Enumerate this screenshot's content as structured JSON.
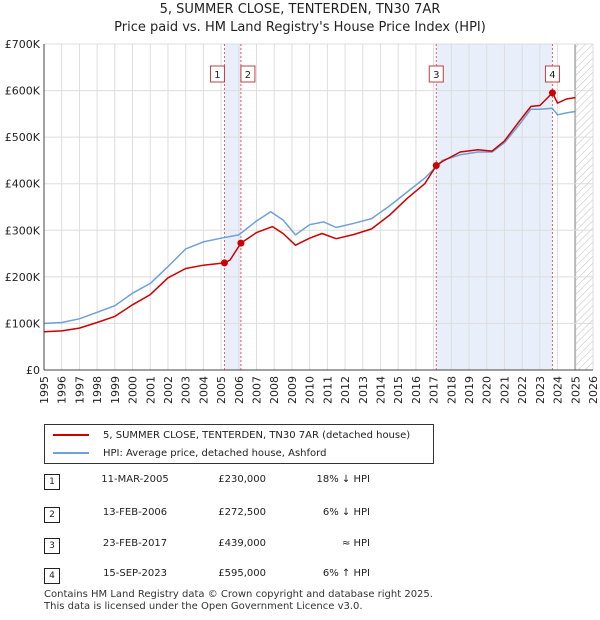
{
  "chart_data": {
    "type": "line",
    "title": "5, SUMMER CLOSE, TENTERDEN, TN30 7AR",
    "subtitle": "Price paid vs. HM Land Registry's House Price Index (HPI)",
    "xlabel": "",
    "ylabel": "",
    "xlim": [
      1995,
      2026
    ],
    "ylim": [
      0,
      700000
    ],
    "x_ticks": [
      "1995",
      "1996",
      "1997",
      "1998",
      "1999",
      "2000",
      "2001",
      "2002",
      "2003",
      "2004",
      "2005",
      "2006",
      "2007",
      "2008",
      "2009",
      "2010",
      "2011",
      "2012",
      "2013",
      "2014",
      "2015",
      "2016",
      "2017",
      "2018",
      "2019",
      "2020",
      "2021",
      "2022",
      "2023",
      "2024",
      "2025",
      "2026"
    ],
    "y_ticks": [
      {
        "value": 0,
        "label": "£0"
      },
      {
        "value": 100000,
        "label": "£100K"
      },
      {
        "value": 200000,
        "label": "£200K"
      },
      {
        "value": 300000,
        "label": "£300K"
      },
      {
        "value": 400000,
        "label": "£400K"
      },
      {
        "value": 500000,
        "label": "£500K"
      },
      {
        "value": 600000,
        "label": "£600K"
      },
      {
        "value": 700000,
        "label": "£700K"
      }
    ],
    "grid": true,
    "series": [
      {
        "name": "5, SUMMER CLOSE, TENTERDEN, TN30 7AR (detached house)",
        "color": "#cc0000",
        "points": [
          [
            1995.0,
            82000
          ],
          [
            1996.0,
            84000
          ],
          [
            1997.0,
            90000
          ],
          [
            1998.0,
            102000
          ],
          [
            1999.0,
            115000
          ],
          [
            2000.0,
            140000
          ],
          [
            2001.0,
            162000
          ],
          [
            2002.0,
            198000
          ],
          [
            2003.0,
            218000
          ],
          [
            2004.0,
            225000
          ],
          [
            2005.19,
            230000
          ],
          [
            2005.5,
            236000
          ],
          [
            2006.12,
            272500
          ],
          [
            2007.0,
            295000
          ],
          [
            2007.9,
            308000
          ],
          [
            2008.5,
            293000
          ],
          [
            2009.2,
            268000
          ],
          [
            2010.0,
            283000
          ],
          [
            2010.7,
            293000
          ],
          [
            2011.5,
            282000
          ],
          [
            2012.5,
            291000
          ],
          [
            2013.5,
            303000
          ],
          [
            2014.5,
            332000
          ],
          [
            2015.5,
            368000
          ],
          [
            2016.5,
            400000
          ],
          [
            2017.15,
            439000
          ],
          [
            2017.5,
            448000
          ],
          [
            2018.5,
            468000
          ],
          [
            2019.5,
            473000
          ],
          [
            2020.3,
            470000
          ],
          [
            2021.0,
            492000
          ],
          [
            2021.8,
            532000
          ],
          [
            2022.5,
            566000
          ],
          [
            2023.0,
            568000
          ],
          [
            2023.71,
            595000
          ],
          [
            2024.0,
            573000
          ],
          [
            2024.5,
            582000
          ],
          [
            2025.0,
            585000
          ]
        ]
      },
      {
        "name": "HPI: Average price, detached house, Ashford",
        "color": "#6fa0d8",
        "points": [
          [
            1995.0,
            100000
          ],
          [
            1996.0,
            102000
          ],
          [
            1997.0,
            110000
          ],
          [
            1998.0,
            124000
          ],
          [
            1999.0,
            138000
          ],
          [
            2000.0,
            165000
          ],
          [
            2001.0,
            186000
          ],
          [
            2002.0,
            222000
          ],
          [
            2003.0,
            260000
          ],
          [
            2004.0,
            275000
          ],
          [
            2005.0,
            283000
          ],
          [
            2006.0,
            290000
          ],
          [
            2007.0,
            320000
          ],
          [
            2007.8,
            340000
          ],
          [
            2008.5,
            322000
          ],
          [
            2009.2,
            290000
          ],
          [
            2010.0,
            312000
          ],
          [
            2010.8,
            318000
          ],
          [
            2011.5,
            306000
          ],
          [
            2012.5,
            315000
          ],
          [
            2013.5,
            325000
          ],
          [
            2014.5,
            352000
          ],
          [
            2015.5,
            382000
          ],
          [
            2016.5,
            412000
          ],
          [
            2017.15,
            437000
          ],
          [
            2017.5,
            450000
          ],
          [
            2018.5,
            462000
          ],
          [
            2019.5,
            468000
          ],
          [
            2020.3,
            468000
          ],
          [
            2021.0,
            488000
          ],
          [
            2021.8,
            525000
          ],
          [
            2022.5,
            560000
          ],
          [
            2023.0,
            560000
          ],
          [
            2023.7,
            562000
          ],
          [
            2024.0,
            548000
          ],
          [
            2024.5,
            552000
          ],
          [
            2025.0,
            555000
          ]
        ]
      }
    ],
    "forecast_start": 2025.0,
    "sales": [
      {
        "id": "1",
        "x": 2005.19,
        "y": 230000
      },
      {
        "id": "2",
        "x": 2006.12,
        "y": 272500
      },
      {
        "id": "3",
        "x": 2017.15,
        "y": 439000
      },
      {
        "id": "4",
        "x": 2023.71,
        "y": 595000
      }
    ],
    "shaded_spans": [
      [
        2005.19,
        2006.12
      ],
      [
        2017.15,
        2023.71
      ]
    ]
  },
  "colors": {
    "price_line": "#cc0000",
    "hpi_line": "#6fa0d8",
    "span_fill": "#e8eefa",
    "grid": "#dddddd",
    "marker_line": "#e06060"
  },
  "legend": {
    "property_label": "5, SUMMER CLOSE, TENTERDEN, TN30 7AR (detached house)",
    "hpi_label": "HPI: Average price, detached house, Ashford"
  },
  "transactions": [
    {
      "num": "1",
      "date": "11-MAR-2005",
      "price": "£230,000",
      "hpi": "18% ↓ HPI"
    },
    {
      "num": "2",
      "date": "13-FEB-2006",
      "price": "£272,500",
      "hpi": "6% ↓ HPI"
    },
    {
      "num": "3",
      "date": "23-FEB-2017",
      "price": "£439,000",
      "hpi": "≈ HPI"
    },
    {
      "num": "4",
      "date": "15-SEP-2023",
      "price": "£595,000",
      "hpi": "6% ↑ HPI"
    }
  ],
  "footer": {
    "line1": "Contains HM Land Registry data © Crown copyright and database right 2025.",
    "line2": "This data is licensed under the Open Government Licence v3.0."
  }
}
